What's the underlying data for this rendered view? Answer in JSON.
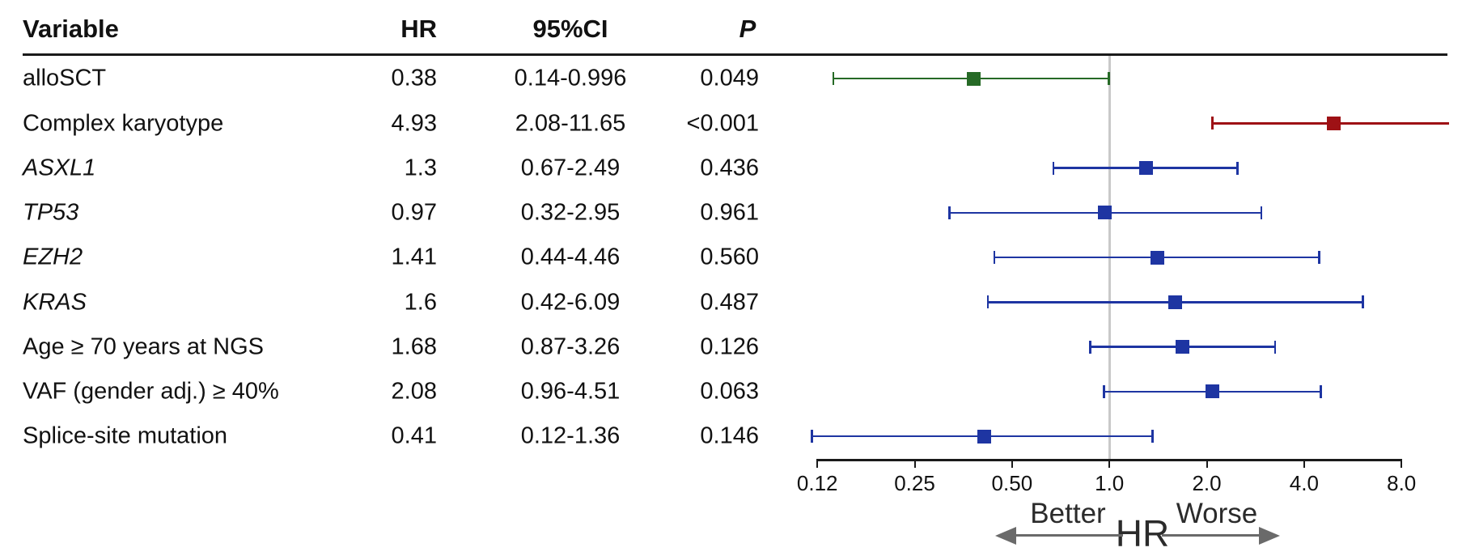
{
  "chart_data": {
    "type": "forest",
    "title": "",
    "columns": {
      "variable": "Variable",
      "hr": "HR",
      "ci": "95%CI",
      "p": "P"
    },
    "rows": [
      {
        "variable": "alloSCT",
        "italic": false,
        "hr_text": "0.38",
        "hr": 0.38,
        "ci_text": "0.14-0.996",
        "ci_lo": 0.14,
        "ci_hi": 0.996,
        "p": "0.049",
        "color": "green"
      },
      {
        "variable": "Complex karyotype",
        "italic": false,
        "hr_text": "4.93",
        "hr": 4.93,
        "ci_text": "2.08-11.65",
        "ci_lo": 2.08,
        "ci_hi": 11.65,
        "p": "<0.001",
        "color": "red"
      },
      {
        "variable": "ASXL1",
        "italic": true,
        "hr_text": "1.3",
        "hr": 1.3,
        "ci_text": "0.67-2.49",
        "ci_lo": 0.67,
        "ci_hi": 2.49,
        "p": "0.436",
        "color": "blue"
      },
      {
        "variable": "TP53",
        "italic": true,
        "hr_text": "0.97",
        "hr": 0.97,
        "ci_text": "0.32-2.95",
        "ci_lo": 0.32,
        "ci_hi": 2.95,
        "p": "0.961",
        "color": "blue"
      },
      {
        "variable": "EZH2",
        "italic": true,
        "hr_text": "1.41",
        "hr": 1.41,
        "ci_text": "0.44-4.46",
        "ci_lo": 0.44,
        "ci_hi": 4.46,
        "p": "0.560",
        "color": "blue"
      },
      {
        "variable": "KRAS",
        "italic": true,
        "hr_text": "1.6",
        "hr": 1.6,
        "ci_text": "0.42-6.09",
        "ci_lo": 0.42,
        "ci_hi": 6.09,
        "p": "0.487",
        "color": "blue"
      },
      {
        "variable": "Age ≥ 70 years at NGS",
        "italic": false,
        "hr_text": "1.68",
        "hr": 1.68,
        "ci_text": "0.87-3.26",
        "ci_lo": 0.87,
        "ci_hi": 3.26,
        "p": "0.126",
        "color": "blue"
      },
      {
        "variable": "VAF (gender adj.) ≥ 40%",
        "italic": false,
        "hr_text": "2.08",
        "hr": 2.08,
        "ci_text": "0.96-4.51",
        "ci_lo": 0.96,
        "ci_hi": 4.51,
        "p": "0.063",
        "color": "blue"
      },
      {
        "variable": "Splice-site mutation",
        "italic": false,
        "hr_text": "0.41",
        "hr": 0.41,
        "ci_text": "0.12-1.36",
        "ci_lo": 0.12,
        "ci_hi": 1.36,
        "p": "0.146",
        "color": "blue"
      }
    ],
    "x_axis": {
      "scale": "log",
      "tick_labels": [
        "0.12",
        "0.25",
        "0.50",
        "1.0",
        "2.0",
        "4.0",
        "8.0"
      ],
      "range_labels": [
        0.12,
        8.0
      ],
      "reference_line": 1.0,
      "grid": false
    },
    "annotations": {
      "better": "Better",
      "hr": "HR",
      "worse": "Worse"
    },
    "colors": {
      "green": "#266a26",
      "red": "#9e1115",
      "blue": "#1e35a2",
      "reference_line": "#c9c9c9",
      "axis": "#1a1a1a",
      "arrow": "#6a6a6a"
    }
  }
}
